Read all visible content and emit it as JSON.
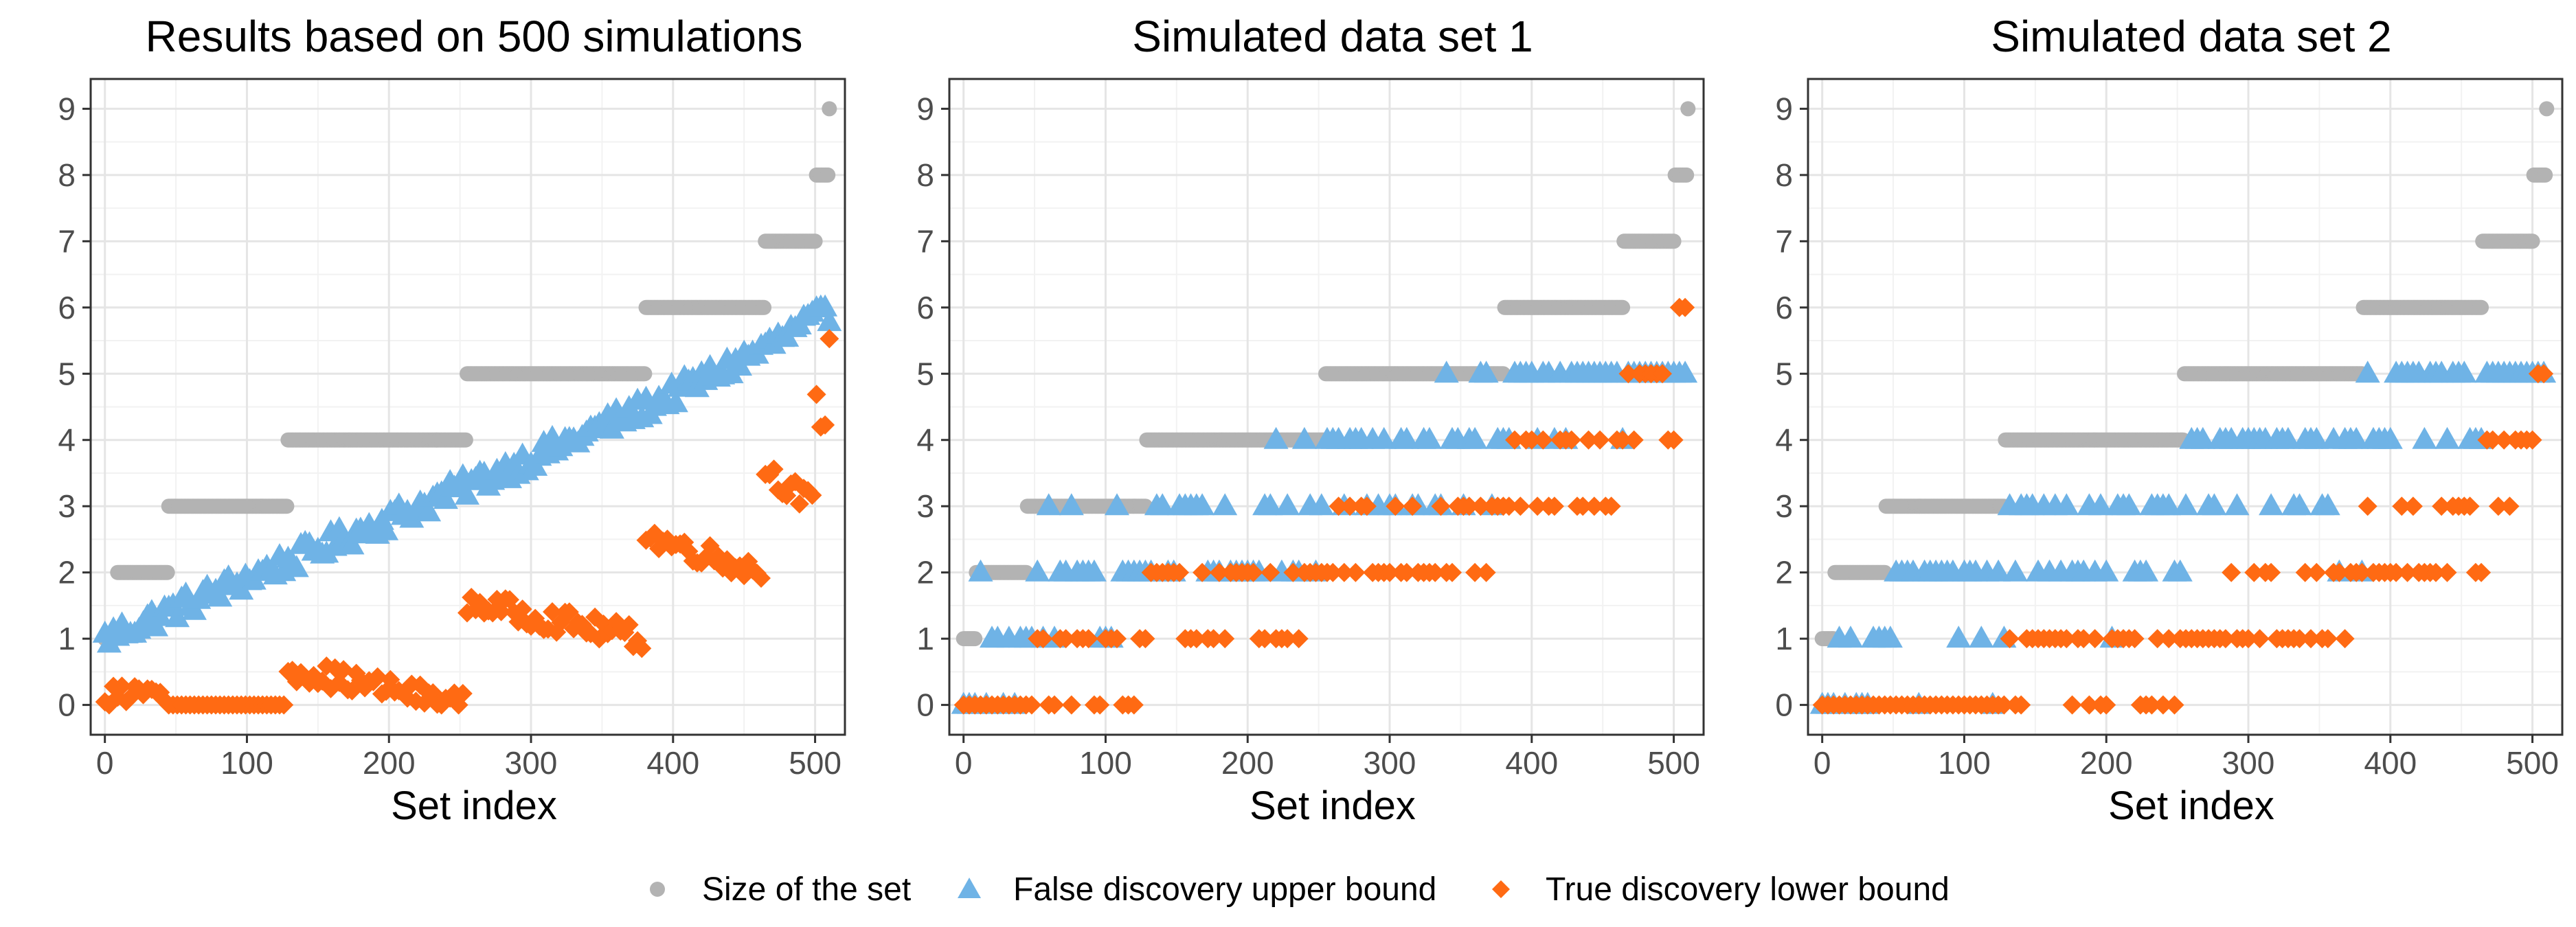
{
  "colors": {
    "size": "#b3b3b3",
    "fdp": "#6fb3e6",
    "tdp": "#ff6a13",
    "grid_major": "#e5e5e5",
    "grid_minor": "#f2f2f2",
    "panel_border": "#333333"
  },
  "legend": {
    "items": [
      {
        "label": "Size of the set",
        "shape": "circle",
        "color_key": "size"
      },
      {
        "label": "False discovery upper bound",
        "shape": "triangle",
        "color_key": "fdp"
      },
      {
        "label": "True discovery lower bound",
        "shape": "diamond",
        "color_key": "tdp"
      }
    ]
  },
  "chart_data": [
    {
      "type": "scatter",
      "title": "Results based on 500 simulations",
      "xlabel": "Set index",
      "ylabel": "",
      "xlim": [
        -10,
        521
      ],
      "ylim": [
        -0.45,
        9.45
      ],
      "xticks": [
        0,
        100,
        200,
        300,
        400,
        500
      ],
      "yticks": [
        0,
        1,
        2,
        3,
        4,
        5,
        6,
        7,
        8,
        9
      ],
      "grid": true,
      "mode": "average",
      "series": [
        {
          "name": "Size of the set",
          "key": "size",
          "segments": [
            [
              0,
              8,
              1
            ],
            [
              9,
              44,
              2
            ],
            [
              45,
              128,
              3
            ],
            [
              129,
              254,
              4
            ],
            [
              255,
              380,
              5
            ],
            [
              381,
              464,
              6
            ],
            [
              465,
              500,
              7
            ],
            [
              501,
              509,
              8
            ],
            [
              510,
              510,
              9
            ]
          ]
        },
        {
          "name": "False discovery upper bound",
          "key": "fdp",
          "lower_base": 1.0,
          "upper_base": 6.0
        },
        {
          "name": "True discovery lower bound",
          "key": "tdp",
          "lower_base": 0.0,
          "upper_base": 3.0
        }
      ]
    },
    {
      "type": "scatter",
      "title": "Simulated data set 1",
      "xlabel": "Set index",
      "ylabel": "",
      "xlim": [
        -10,
        521
      ],
      "ylim": [
        -0.45,
        9.45
      ],
      "xticks": [
        0,
        100,
        200,
        300,
        400,
        500
      ],
      "yticks": [
        0,
        1,
        2,
        3,
        4,
        5,
        6,
        7,
        8,
        9
      ],
      "grid": true,
      "mode": "integer",
      "fdp_offset": 0,
      "series": [
        {
          "name": "Size of the set",
          "key": "size",
          "segments": [
            [
              0,
              8,
              1
            ],
            [
              9,
              44,
              2
            ],
            [
              45,
              128,
              3
            ],
            [
              129,
              254,
              4
            ],
            [
              255,
              380,
              5
            ],
            [
              381,
              464,
              6
            ],
            [
              465,
              500,
              7
            ],
            [
              501,
              509,
              8
            ],
            [
              510,
              510,
              9
            ]
          ]
        },
        {
          "name": "False discovery upper bound",
          "key": "fdp"
        },
        {
          "name": "True discovery lower bound",
          "key": "tdp"
        }
      ]
    },
    {
      "type": "scatter",
      "title": "Simulated data set 2",
      "xlabel": "Set index",
      "ylabel": "",
      "xlim": [
        -10,
        521
      ],
      "ylim": [
        -0.45,
        9.45
      ],
      "xticks": [
        0,
        100,
        200,
        300,
        400,
        500
      ],
      "yticks": [
        0,
        1,
        2,
        3,
        4,
        5,
        6,
        7,
        8,
        9
      ],
      "grid": true,
      "mode": "integer",
      "fdp_offset": 1,
      "series": [
        {
          "name": "Size of the set",
          "key": "size",
          "segments": [
            [
              0,
              8,
              1
            ],
            [
              9,
              44,
              2
            ],
            [
              45,
              128,
              3
            ],
            [
              129,
              254,
              4
            ],
            [
              255,
              380,
              5
            ],
            [
              381,
              464,
              6
            ],
            [
              465,
              500,
              7
            ],
            [
              501,
              509,
              8
            ],
            [
              510,
              510,
              9
            ]
          ]
        },
        {
          "name": "False discovery upper bound",
          "key": "fdp"
        },
        {
          "name": "True discovery lower bound",
          "key": "tdp"
        }
      ]
    }
  ]
}
